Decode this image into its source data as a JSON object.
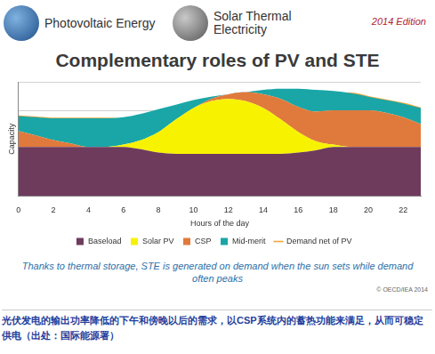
{
  "header": {
    "logos": [
      "Photovoltaic Energy",
      "Solar Thermal Electricity"
    ],
    "edition": "2014 Edition"
  },
  "chart_data": {
    "type": "area",
    "title": "Complementary roles of PV and STE",
    "x_label": "Hours of the day",
    "y_label": "Capacity",
    "x": [
      0,
      1,
      2,
      3,
      4,
      5,
      6,
      7,
      8,
      9,
      10,
      11,
      12,
      13,
      14,
      15,
      16,
      17,
      18,
      19,
      20,
      21,
      22,
      23
    ],
    "xlim": [
      0,
      23
    ],
    "xticks": [
      0,
      2,
      4,
      6,
      8,
      10,
      12,
      14,
      16,
      18,
      20,
      22
    ],
    "ylim": [
      0,
      100
    ],
    "yticks": [
      0,
      25,
      50,
      75,
      100
    ],
    "stacked": true,
    "grid": true,
    "tick_labels": "x",
    "legend": "bottom",
    "series": [
      {
        "name": "Baseload",
        "type": "area",
        "color": "#6e3b5c",
        "values": [
          43,
          43,
          43,
          43,
          43,
          43,
          43,
          41,
          38,
          37,
          37,
          37,
          37,
          37,
          37,
          37,
          38,
          40,
          43,
          43,
          43,
          43,
          43,
          43
        ]
      },
      {
        "name": "Solar PV",
        "type": "area",
        "color": "#f7f200",
        "values": [
          0,
          0,
          0,
          0,
          0,
          0,
          2,
          8,
          18,
          30,
          40,
          46,
          48,
          46,
          40,
          30,
          18,
          8,
          2,
          0,
          0,
          0,
          0,
          0
        ]
      },
      {
        "name": "CSP",
        "type": "area",
        "color": "#e07a3c",
        "values": [
          14,
          10,
          6,
          3,
          0,
          0,
          0,
          0,
          0,
          0,
          0,
          2,
          4,
          8,
          12,
          18,
          22,
          26,
          30,
          32,
          32,
          30,
          26,
          20
        ]
      },
      {
        "name": "Mid-merit",
        "type": "area",
        "color": "#1aa6a6",
        "values": [
          13,
          16,
          19,
          22,
          25,
          25,
          24,
          23,
          20,
          13,
          7,
          2,
          0,
          0,
          4,
          9,
          16,
          19,
          17,
          15,
          12,
          11,
          12,
          14
        ]
      },
      {
        "name": "Demand net of PV",
        "type": "line",
        "color": "#efa63a",
        "values": [
          70,
          69,
          68,
          68,
          68,
          68,
          67,
          64,
          58,
          50,
          44,
          41,
          41,
          45,
          53,
          64,
          76,
          85,
          90,
          90,
          87,
          84,
          81,
          77
        ]
      }
    ]
  },
  "footer": {
    "caption": "Thanks to thermal storage, STE is generated on demand when the sun sets while demand often peaks",
    "copyright": "© OECD/IEA 2014",
    "note": "光伏发电的输出功率降低的下午和傍晚以后的需求，以CSP系统内的蓄热功能来满足，从而可稳定供电（出处：国际能源署）"
  }
}
